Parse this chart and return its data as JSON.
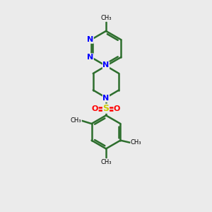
{
  "background_color": "#ebebeb",
  "bond_color": "#2d6e2d",
  "n_color": "#0000ff",
  "s_color": "#cccc00",
  "o_color": "#ff0000",
  "text_color": "#000000",
  "figsize": [
    3.0,
    3.0
  ],
  "dpi": 100,
  "xlim": [
    0,
    10
  ],
  "ylim": [
    0,
    14
  ]
}
